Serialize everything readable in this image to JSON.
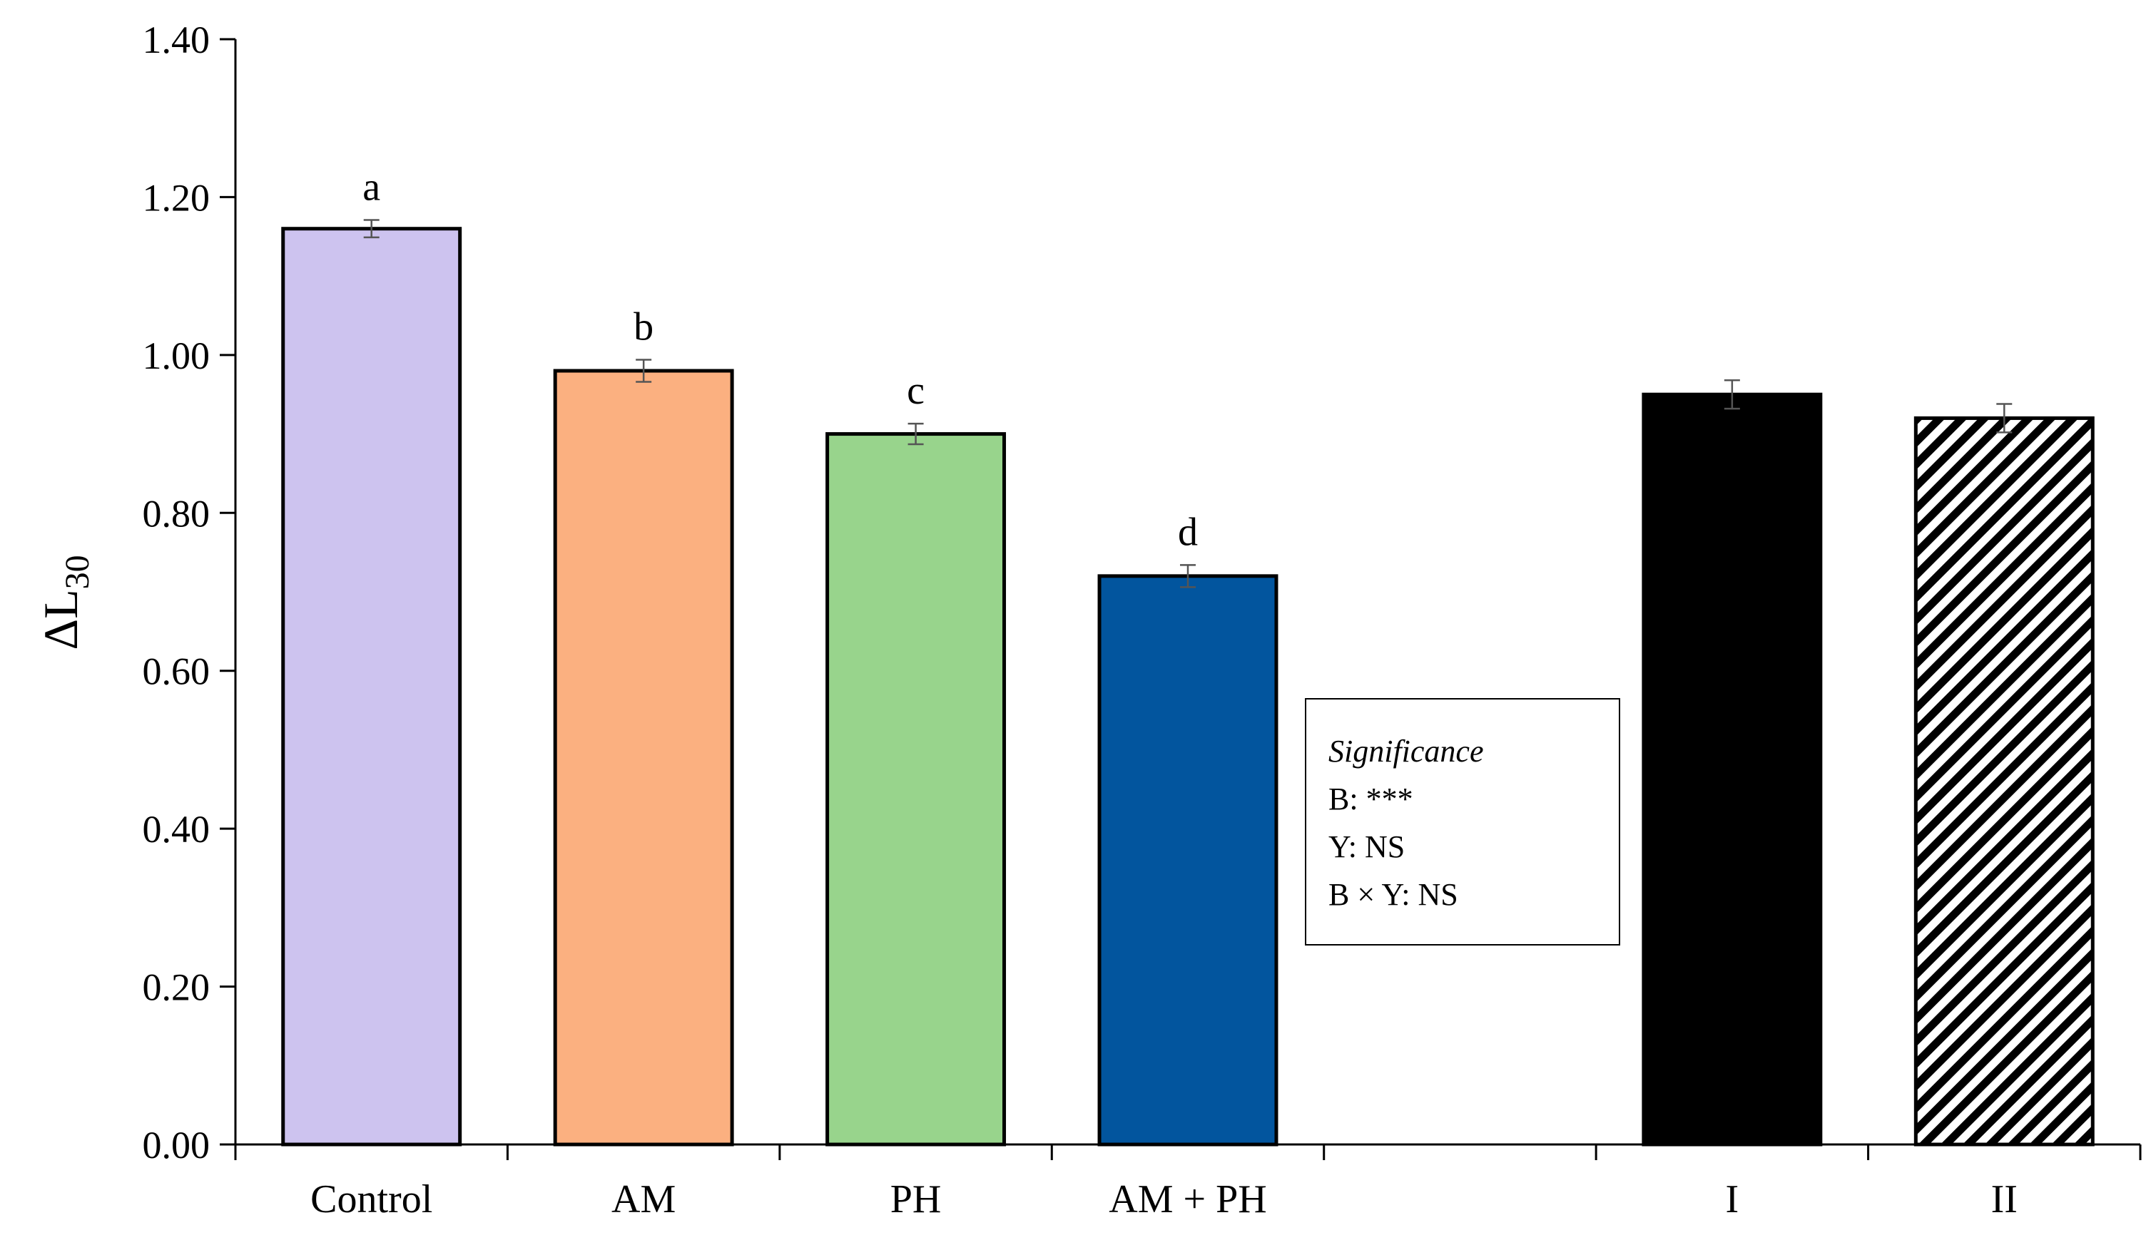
{
  "chart_data": {
    "type": "bar",
    "title": "",
    "xlabel": "",
    "ylabel": "ΔL",
    "ylabel_subscript": "30",
    "ylim": [
      0,
      1.4
    ],
    "yticks": [
      "0.00",
      "0.20",
      "0.40",
      "0.60",
      "0.80",
      "1.00",
      "1.20",
      "1.40"
    ],
    "grid": false,
    "categories": [
      "Control",
      "AM",
      "PH",
      "AM + PH",
      "",
      "I",
      "II"
    ],
    "values": [
      1.16,
      0.98,
      0.9,
      0.72,
      null,
      0.95,
      0.92
    ],
    "errors": [
      0.011,
      0.014,
      0.013,
      0.014,
      null,
      0.018,
      0.018
    ],
    "significance_letters": [
      "a",
      "b",
      "c",
      "d",
      "",
      "",
      ""
    ],
    "bar_colors": [
      "#cdc3ef",
      "#fbb080",
      "#98d48c",
      "#02559e",
      null,
      "#000000",
      "hatched"
    ],
    "annotation": {
      "title": "Significance",
      "lines": [
        "B: ***",
        "Y: NS",
        "B × Y: NS"
      ]
    }
  }
}
